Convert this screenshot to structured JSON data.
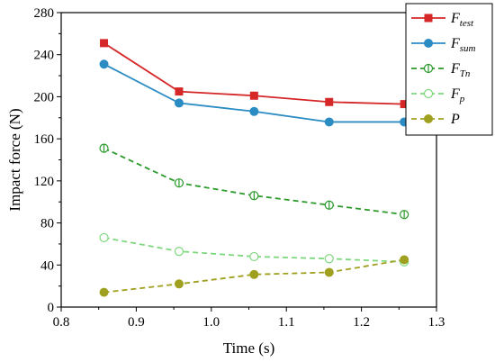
{
  "chart_data": {
    "type": "line",
    "xlabel": "Time (s)",
    "ylabel": "Impact force (N)",
    "xlim": [
      0.8,
      1.3
    ],
    "ylim": [
      0,
      280
    ],
    "x_ticks": [
      "0.8",
      "0.9",
      "1.0",
      "1.1",
      "1.2",
      "1.3"
    ],
    "y_ticks": [
      "0",
      "40",
      "80",
      "120",
      "160",
      "200",
      "240",
      "280"
    ],
    "x": [
      0.857,
      0.957,
      1.057,
      1.157,
      1.257
    ],
    "legend_position": "top-right",
    "series": [
      {
        "name": "F",
        "sub": "test",
        "color": "#d62728",
        "dash": "solid",
        "marker": "square",
        "values": [
          251,
          205,
          201,
          195,
          193
        ]
      },
      {
        "name": "F",
        "sub": "sum",
        "color": "#2b8cc4",
        "dash": "solid",
        "marker": "circle-filled",
        "values": [
          231,
          194,
          186,
          176,
          176
        ]
      },
      {
        "name": "F",
        "sub": "Tn",
        "color": "#2a9a2a",
        "dash": "dashed",
        "marker": "circle-bar",
        "values": [
          151,
          118,
          106,
          97,
          88
        ]
      },
      {
        "name": "F",
        "sub": "p",
        "color": "#7dd87d",
        "dash": "dashed",
        "marker": "circle-open",
        "values": [
          66,
          53,
          48,
          46,
          43
        ]
      },
      {
        "name": "P",
        "sub": "",
        "color": "#a0a020",
        "dash": "dashed",
        "marker": "circle-filled",
        "values": [
          14,
          22,
          31,
          33,
          45
        ]
      }
    ]
  }
}
